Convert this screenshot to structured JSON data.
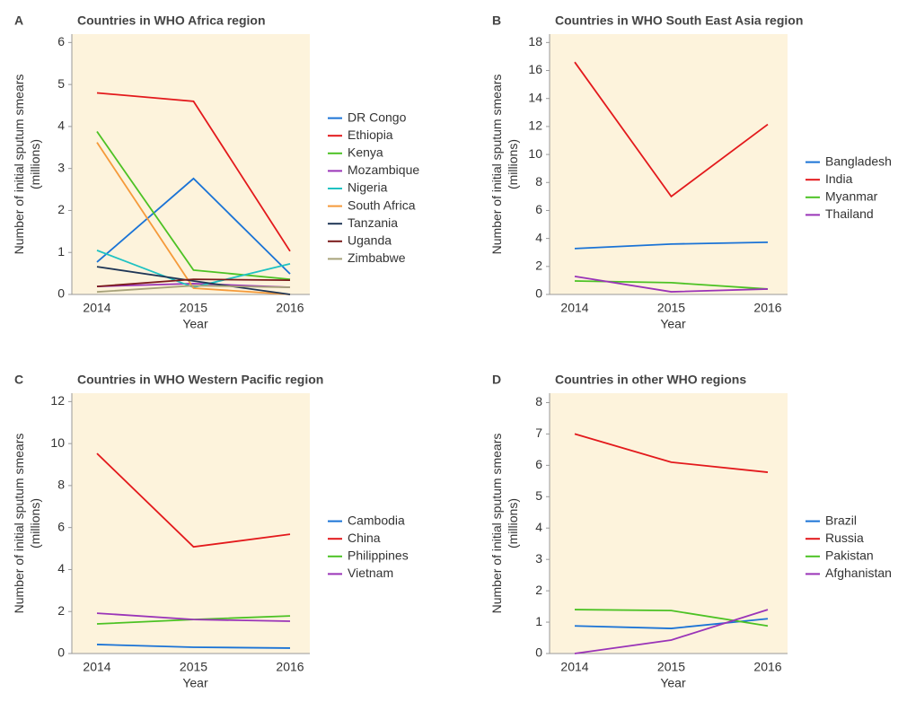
{
  "chart_data": [
    {
      "type": "line",
      "label": "A",
      "title": "Countries in WHO Africa region",
      "ylabel": [
        "Number of initial sputum smears",
        "(millions)"
      ],
      "xlabel": "Year",
      "categories": [
        "2014",
        "2015",
        "2016"
      ],
      "ylim": [
        0,
        6.2
      ],
      "yticks": [
        0,
        1,
        2,
        3,
        4,
        5,
        6
      ],
      "series": [
        {
          "name": "DR Congo",
          "color": "#1a73d6",
          "values": [
            0.77,
            2.76,
            0.49
          ]
        },
        {
          "name": "Ethiopia",
          "color": "#e3191c",
          "values": [
            4.8,
            4.6,
            1.03
          ]
        },
        {
          "name": "Kenya",
          "color": "#4cc224",
          "values": [
            3.88,
            0.58,
            0.36
          ]
        },
        {
          "name": "Mozambique",
          "color": "#9a34b8",
          "values": [
            0.19,
            0.26,
            0.17
          ]
        },
        {
          "name": "Nigeria",
          "color": "#1fc2c2",
          "values": [
            1.05,
            0.17,
            0.73
          ]
        },
        {
          "name": "South Africa",
          "color": "#f59a3a",
          "values": [
            3.62,
            0.15,
            0
          ]
        },
        {
          "name": "Tanzania",
          "color": "#1f3656",
          "values": [
            0.66,
            0.32,
            0
          ]
        },
        {
          "name": "Uganda",
          "color": "#7a1a1a",
          "values": [
            0.19,
            0.36,
            0.34
          ]
        },
        {
          "name": "Zimbabwe",
          "color": "#a7a27a",
          "values": [
            0.06,
            0.21,
            0.17
          ]
        }
      ]
    },
    {
      "type": "line",
      "label": "B",
      "title": "Countries in WHO South East Asia region",
      "ylabel": [
        "Number of initial sputum smears",
        "(millions)"
      ],
      "xlabel": "Year",
      "categories": [
        "2014",
        "2015",
        "2016"
      ],
      "ylim": [
        0,
        18.6
      ],
      "yticks": [
        0,
        2,
        4,
        6,
        8,
        10,
        12,
        14,
        16,
        18
      ],
      "series": [
        {
          "name": "Bangladesh",
          "color": "#1a73d6",
          "values": [
            3.28,
            3.6,
            3.73
          ]
        },
        {
          "name": "India",
          "color": "#e3191c",
          "values": [
            16.6,
            7.0,
            12.15
          ]
        },
        {
          "name": "Myanmar",
          "color": "#4cc224",
          "values": [
            0.96,
            0.84,
            0.39
          ]
        },
        {
          "name": "Thailand",
          "color": "#9a34b8",
          "values": [
            1.29,
            0.19,
            0.39
          ]
        }
      ]
    },
    {
      "type": "line",
      "label": "C",
      "title": "Countries in WHO Western Pacific region",
      "ylabel": [
        "Number of initial sputum smears",
        "(millions)"
      ],
      "xlabel": "Year",
      "categories": [
        "2014",
        "2015",
        "2016"
      ],
      "ylim": [
        0,
        12.4
      ],
      "yticks": [
        0,
        2,
        4,
        6,
        8,
        10,
        12
      ],
      "series": [
        {
          "name": "Cambodia",
          "color": "#1a73d6",
          "values": [
            0.43,
            0.3,
            0.26
          ]
        },
        {
          "name": "China",
          "color": "#e3191c",
          "values": [
            9.53,
            5.08,
            5.68
          ]
        },
        {
          "name": "Philippines",
          "color": "#4cc224",
          "values": [
            1.41,
            1.62,
            1.79
          ]
        },
        {
          "name": "Vietnam",
          "color": "#9a34b8",
          "values": [
            1.92,
            1.62,
            1.54
          ]
        }
      ]
    },
    {
      "type": "line",
      "label": "D",
      "title": "Countries in other WHO regions",
      "ylabel": [
        "Number of initial sputum smears",
        "(millions)"
      ],
      "xlabel": "Year",
      "categories": [
        "2014",
        "2015",
        "2016"
      ],
      "ylim": [
        0,
        8.3
      ],
      "yticks": [
        0,
        1,
        2,
        3,
        4,
        5,
        6,
        7,
        8
      ],
      "series": [
        {
          "name": "Brazil",
          "color": "#1a73d6",
          "values": [
            0.88,
            0.8,
            1.11
          ]
        },
        {
          "name": "Russia",
          "color": "#e3191c",
          "values": [
            7.0,
            6.1,
            5.78
          ]
        },
        {
          "name": "Pakistan",
          "color": "#4cc224",
          "values": [
            1.4,
            1.37,
            0.88
          ]
        },
        {
          "name": "Afghanistan",
          "color": "#9a34b8",
          "values": [
            0,
            0.43,
            1.4
          ]
        }
      ]
    }
  ]
}
